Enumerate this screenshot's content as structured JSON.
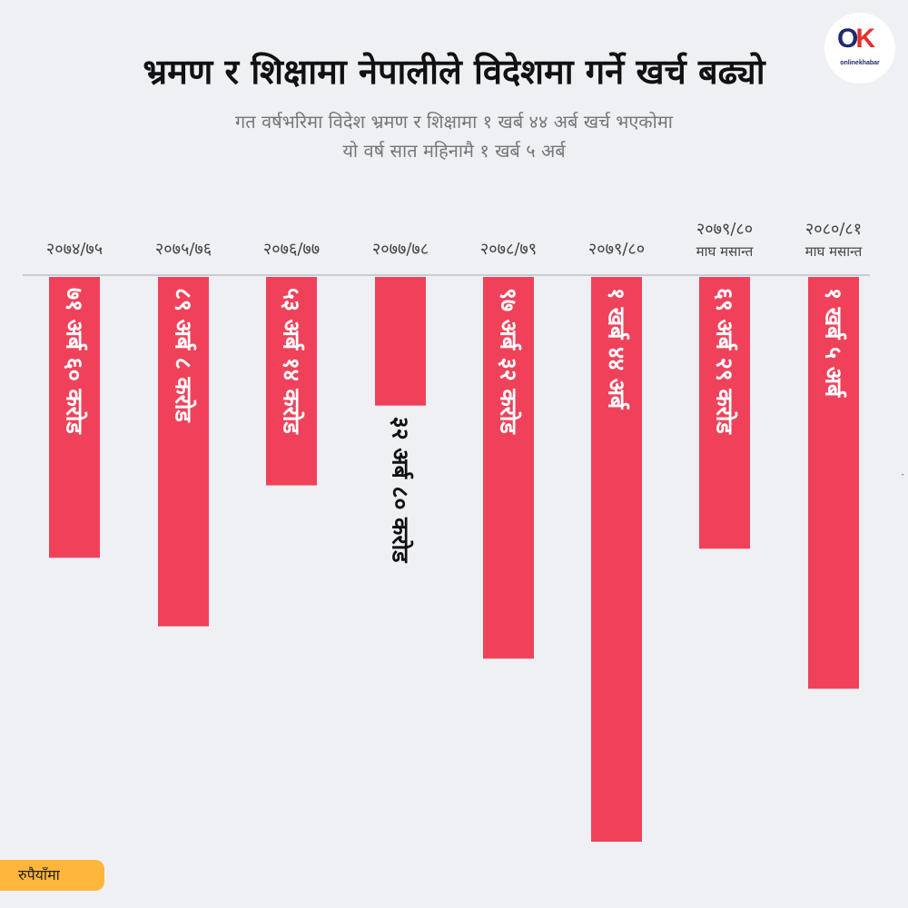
{
  "header": {
    "title": "भ्रमण र शिक्षामा नेपालीले विदेशमा गर्ने खर्च बढ्यो",
    "subtitle_line1": "गत वर्षभरिमा विदेश भ्रमण र शिक्षामा १ खर्ब ४४ अर्ब खर्च भएकोमा",
    "subtitle_line2": "यो वर्ष सात महिनामै १ खर्ब ५ अर्ब"
  },
  "logo": {
    "text_o": "O",
    "text_k": "K",
    "brand": "onlinekhabar"
  },
  "unit_label": "रुपैयाँमा",
  "colors": {
    "bar": "#ef425a",
    "background": "#eef0f4",
    "axis": "#c8ccd4",
    "unit_badge": "#ffb63a"
  },
  "chart_data": {
    "type": "bar",
    "orientation": "vertical-downward",
    "categories": [
      "२०७४/७५",
      "२०७५/७६",
      "२०७६/७७",
      "२०७७/७८",
      "२०७८/७९",
      "२०७९/८०",
      "२०७९/८०",
      "२०८०/८१"
    ],
    "category_notes": [
      "",
      "",
      "",
      "",
      "",
      "",
      "माघ मसान्त",
      "माघ मसान्त"
    ],
    "values": [
      71.6,
      89.08,
      53.14,
      32.8,
      97.32,
      144,
      69.29,
      105
    ],
    "value_unit": "अर्ब",
    "data_labels": [
      "७१ अर्ब ६० करोड",
      "८९ अर्ब ८ करोड",
      "५३ अर्ब १४ करोड",
      "३२ अर्ब ८० करोड",
      "९७ अर्ब ३२ करोड",
      "१ खर्ब ४४ अर्ब",
      "६९ अर्ब २९ करोड",
      "१ खर्ब ५ अर्ब"
    ],
    "grid": false,
    "legend": "none"
  }
}
